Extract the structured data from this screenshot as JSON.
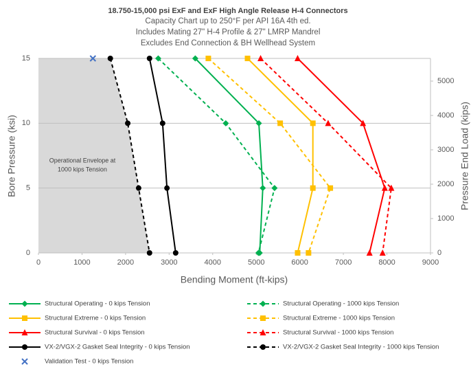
{
  "chart_data": {
    "type": "line",
    "title": "18.750-15,000 psi ExF and ExF High Angle Release H-4 Connectors",
    "subtitle": [
      "Capacity Chart up to 250°F per API 16A 4th ed.",
      "Includes Mating 27\" H-4 Profile & 27\" LMRP Mandrel",
      "Excludes End Connection & BH Wellhead System"
    ],
    "xlabel": "Bending Moment (ft-kips)",
    "ylabel": "Bore Pressure (ksi)",
    "y2label": "Pressure End Load (kips)",
    "annotation": [
      "Operational Envelope at",
      "1000 kips Tension"
    ],
    "xlim": [
      0,
      9000
    ],
    "xticks": [
      0,
      1000,
      2000,
      3000,
      4000,
      5000,
      6000,
      7000,
      8000,
      9000
    ],
    "ylim": [
      0,
      15
    ],
    "yticks": [
      0,
      5,
      10,
      15
    ],
    "y2lim": [
      0,
      5660
    ],
    "y2ticks": [
      0,
      1000,
      2000,
      3000,
      4000,
      5000
    ],
    "grid": true,
    "envelope_color": "#d9d9d9",
    "series": [
      {
        "name": "Structural Operating - 0 kips Tension",
        "color": "#00b050",
        "marker": "diamond",
        "dashed": false,
        "x": [
          3600,
          5060,
          5150,
          5080
        ],
        "values": [
          15,
          10,
          5,
          0
        ]
      },
      {
        "name": "Structural Operating - 1000 kips Tension",
        "color": "#00b050",
        "marker": "diamond",
        "dashed": true,
        "x": [
          2750,
          4300,
          5420,
          5050
        ],
        "values": [
          15,
          10,
          5,
          0
        ]
      },
      {
        "name": "Structural Extreme - 0 kips Tension",
        "color": "#ffc000",
        "marker": "square",
        "dashed": false,
        "x": [
          4800,
          6300,
          6300,
          5950
        ],
        "values": [
          15,
          10,
          5,
          0
        ]
      },
      {
        "name": "Structural Extreme - 1000 kips Tension",
        "color": "#ffc000",
        "marker": "square",
        "dashed": true,
        "x": [
          3900,
          5550,
          6700,
          6200
        ],
        "values": [
          15,
          10,
          5,
          0
        ]
      },
      {
        "name": "Structural Survival - 0 kips Tension",
        "color": "#ff0000",
        "marker": "triangle",
        "dashed": false,
        "x": [
          5950,
          7450,
          7950,
          7600
        ],
        "values": [
          15,
          10,
          5,
          0
        ]
      },
      {
        "name": "Structural Survival - 1000 kips Tension",
        "color": "#ff0000",
        "marker": "triangle",
        "dashed": true,
        "x": [
          5100,
          6650,
          8100,
          7900
        ],
        "values": [
          15,
          10,
          5,
          0
        ]
      },
      {
        "name": "VX-2/VGX-2 Gasket Seal Integrity - 0 kips Tension",
        "color": "#000000",
        "marker": "circle",
        "dashed": false,
        "x": [
          2550,
          2850,
          2950,
          3150
        ],
        "values": [
          15,
          10,
          5,
          0
        ]
      },
      {
        "name": "VX-2/VGX-2 Gasket Seal Integrity - 1000 kips Tension",
        "color": "#000000",
        "marker": "circle",
        "dashed": true,
        "x": [
          1650,
          2050,
          2300,
          2550
        ],
        "values": [
          15,
          10,
          5,
          0
        ]
      },
      {
        "name": "Validation Test - 0 kips Tension",
        "color": "#4472c4",
        "marker": "x",
        "dashed": false,
        "x": [
          1250
        ],
        "values": [
          15
        ]
      }
    ]
  }
}
